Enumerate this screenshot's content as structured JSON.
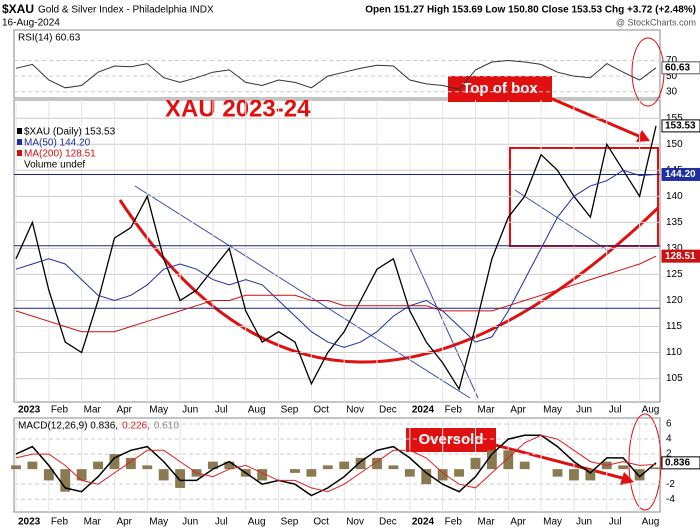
{
  "header": {
    "symbol": "$XAU",
    "name": "Gold & Silver Index - Philadelphia INDX",
    "date": "16-Aug-2024",
    "quote": "Open 151.27  High 153.69  Low 150.80  Close 153.53  Chg +3.72 (+2.48%)",
    "credit": "@ StockCharts.com"
  },
  "annotations": {
    "title": "XAU 2023-24",
    "top_box": "Top of box",
    "oversold": "Oversold"
  },
  "chart_data": [
    {
      "type": "rsi",
      "title": "RSI(14) 60.63",
      "color": "#333333",
      "values": [
        60,
        65,
        45,
        35,
        38,
        55,
        63,
        62,
        66,
        48,
        42,
        48,
        55,
        58,
        42,
        38,
        45,
        42,
        35,
        50,
        55,
        60,
        64,
        63,
        45,
        40,
        38,
        33,
        58,
        68,
        70,
        68,
        65,
        55,
        50,
        48,
        66,
        55,
        45,
        60.63
      ],
      "last_label": "60.63",
      "ylim": [
        22,
        109
      ],
      "yticks": [
        30,
        50,
        70
      ]
    },
    {
      "type": "price",
      "legend_extra": "Volume undef",
      "categories": [
        "2023",
        null,
        "Feb",
        null,
        "Mar",
        null,
        "Apr",
        null,
        "May",
        null,
        "Jun",
        null,
        "Jul",
        null,
        "Aug",
        null,
        "Sep",
        null,
        "Oct",
        null,
        "Nov",
        null,
        "Dec",
        null,
        "2024",
        null,
        "Feb",
        null,
        "Mar",
        null,
        "Apr",
        null,
        "May",
        null,
        "Jun",
        null,
        "Jul",
        null,
        "Aug",
        null
      ],
      "series": [
        {
          "name": "$XAU (Daily) 153.53",
          "color": "#000000",
          "last_label": "153.53",
          "values": [
            128,
            135,
            122,
            112,
            110,
            120,
            132,
            134,
            140,
            128,
            120,
            122,
            126,
            130,
            118,
            112,
            114,
            112,
            104,
            110,
            114,
            120,
            126,
            128,
            118,
            112,
            108,
            103,
            115,
            128,
            136,
            140,
            148,
            145,
            140,
            136,
            150,
            145,
            140,
            153.53
          ]
        },
        {
          "name": "MA(50) 144.20",
          "color": "#1f2fa0",
          "last_label": "144.20",
          "values": [
            126,
            127,
            128,
            127,
            124,
            121,
            120,
            121,
            123,
            126,
            127,
            126,
            124,
            123,
            124,
            123,
            120,
            117,
            114,
            112,
            111,
            112,
            114,
            117,
            119,
            120,
            118,
            115,
            112,
            113,
            118,
            124,
            130,
            136,
            140,
            142,
            143,
            145,
            144,
            144.2
          ]
        },
        {
          "name": "MA(200) 128.51",
          "color": "#cc1111",
          "last_label": "128.51",
          "values": [
            118,
            117,
            116,
            115,
            114,
            114,
            114,
            115,
            116,
            117,
            118,
            119,
            120,
            120,
            121,
            121,
            121,
            121,
            120,
            120,
            119,
            119,
            119,
            119,
            119,
            119,
            118,
            118,
            118,
            118,
            119,
            120,
            121,
            122,
            123,
            124,
            125,
            126,
            127,
            128.51
          ]
        }
      ],
      "levels": [
        144.2,
        130.5,
        118.5
      ],
      "level_color": "#1a237e",
      "ylim": [
        100.5,
        158.5
      ],
      "yticks": [
        105,
        110,
        115,
        120,
        125,
        130,
        135,
        140,
        145,
        150,
        155
      ]
    },
    {
      "type": "macd",
      "title_parts": [
        "MACD(12,26,9) 0.836,",
        "0.226,",
        "0.610"
      ],
      "categories": [
        "2023",
        null,
        "Feb",
        null,
        "Mar",
        null,
        "Apr",
        null,
        "May",
        null,
        "Jun",
        null,
        "Jul",
        null,
        "Aug",
        null,
        "Sep",
        null,
        "Oct",
        null,
        "Nov",
        null,
        "Dec",
        null,
        "2024",
        null,
        "Feb",
        null,
        "Mar",
        null,
        "Apr",
        null,
        "May",
        null,
        "Jun",
        null,
        "Jul",
        null,
        "Aug",
        null
      ],
      "series": [
        {
          "name": "MACD",
          "color": "#000000",
          "last_label": "0.836",
          "values": [
            2,
            3,
            0.5,
            -2.5,
            -3,
            -1,
            1.5,
            2.5,
            3,
            1,
            -1.5,
            -1.5,
            0,
            1,
            -0.5,
            -2,
            -1.5,
            -2,
            -3.5,
            -2.5,
            -1,
            1,
            2.5,
            3,
            1.5,
            -0.5,
            -2,
            -3,
            -1,
            2,
            4,
            4.5,
            4.5,
            3,
            1,
            -0.5,
            1.5,
            1.5,
            -1,
            0.836
          ]
        },
        {
          "name": "Signal",
          "color": "#dd2222",
          "values": [
            1.5,
            2,
            2,
            0.5,
            -1.5,
            -2,
            -0.5,
            1,
            2.5,
            2.5,
            1,
            -0.5,
            -1,
            0,
            0.5,
            -0.5,
            -1.5,
            -1.5,
            -2.5,
            -3,
            -2,
            -0.5,
            1,
            2.5,
            2.5,
            1.5,
            -0.5,
            -2,
            -2.5,
            -0.5,
            1.5,
            3.5,
            4.5,
            4,
            2.5,
            1,
            0.5,
            1,
            0.5,
            0.61
          ]
        }
      ],
      "histogram": {
        "color": "#8a7a50",
        "values": [
          0.5,
          1,
          -1.5,
          -3,
          -1.5,
          1,
          2,
          1.5,
          0.5,
          -1.5,
          -2.5,
          -1,
          1,
          1,
          -1,
          -1.5,
          0,
          -0.5,
          -1,
          0.5,
          1,
          1.5,
          1.5,
          0.5,
          -1,
          -2,
          -1.5,
          -1,
          1.5,
          2.5,
          2.5,
          1,
          0,
          -1,
          -1.5,
          -1.5,
          1,
          0.5,
          -1.5,
          0.226
        ]
      },
      "ylim": [
        -5.7,
        6.8
      ],
      "yticks": [
        -4,
        -2,
        2,
        4,
        6
      ]
    }
  ]
}
